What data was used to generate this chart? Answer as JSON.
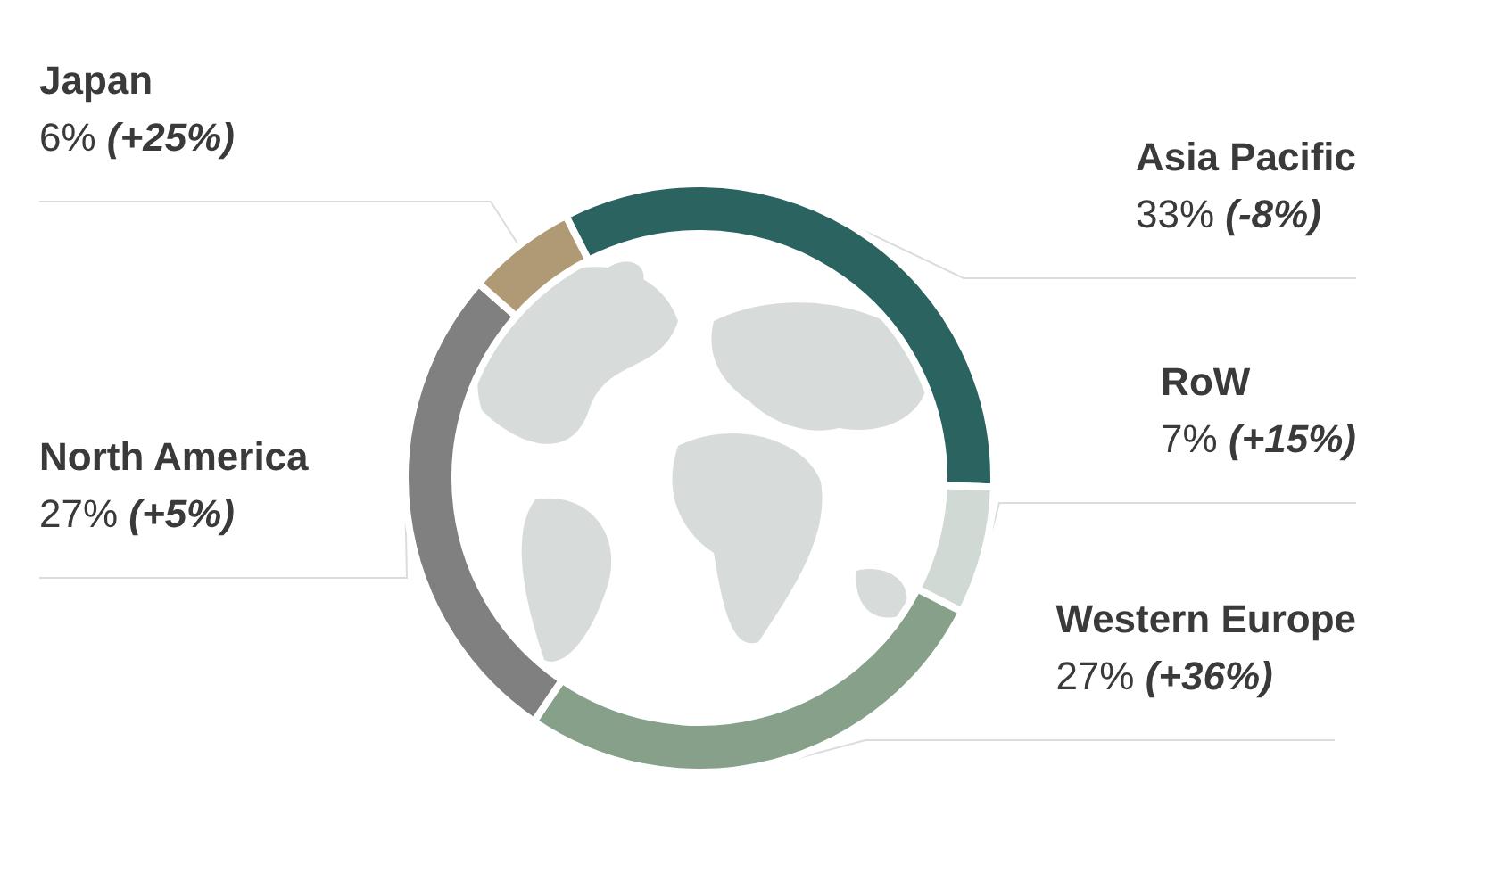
{
  "chart_data": {
    "type": "donut",
    "categories": [
      "Asia Pacific",
      "RoW",
      "Western Europe",
      "North America",
      "Japan"
    ],
    "values": [
      33,
      7,
      27,
      27,
      6
    ],
    "colors": [
      "#2a6360",
      "#d0d9d4",
      "#86a08a",
      "#808080",
      "#b09a75"
    ],
    "value_labels": [
      "33% (-8%)",
      "7% (+15%)",
      "27% (+36%)",
      "27% (+5%)",
      "6% (+25%)"
    ],
    "legend": false
  }
}
